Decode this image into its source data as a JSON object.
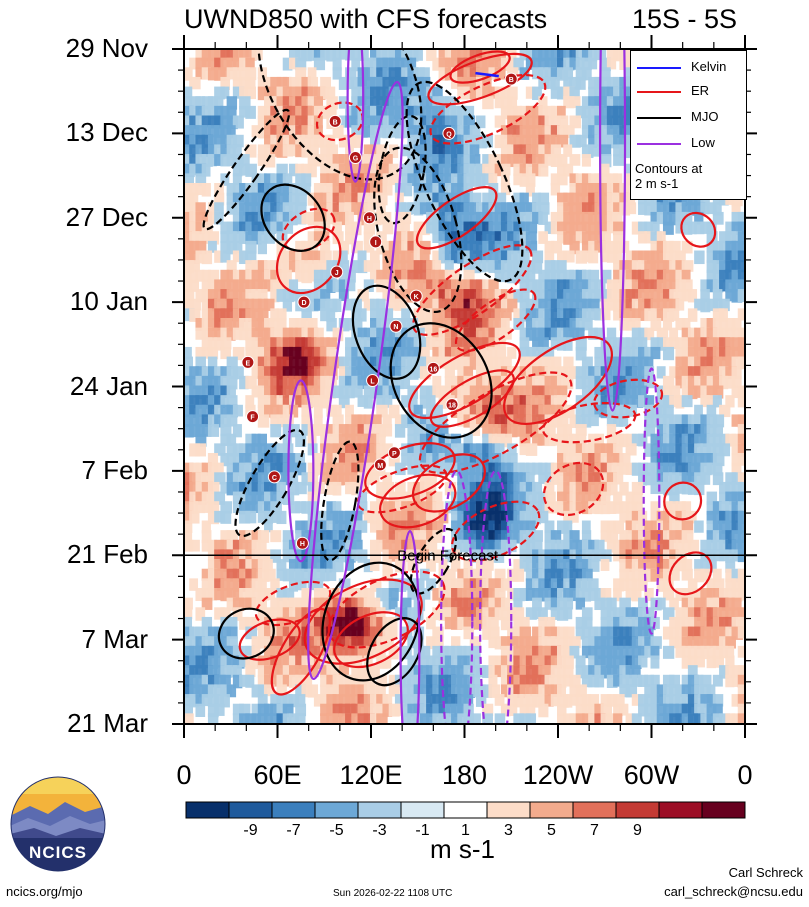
{
  "chart_data": {
    "type": "heatmap",
    "title": "UWND850 with CFS forecasts",
    "region": "15S - 5S",
    "y_tick_labels": [
      "29 Nov",
      "13 Dec",
      "27 Dec",
      "10 Jan",
      "24 Jan",
      "7 Feb",
      "21 Feb",
      "7 Mar",
      "21 Mar"
    ],
    "x_tick_labels": [
      "0",
      "60E",
      "120E",
      "180",
      "120W",
      "60W",
      "0"
    ],
    "x_range_degE": [
      0,
      360
    ],
    "y_range_days_from_29Nov": [
      0,
      112
    ],
    "forecast_start_day": 84,
    "forecast_label": "Begin Forecast",
    "colorbar": {
      "units": "m s-1",
      "tick_labels": [
        "-9",
        "-7",
        "-5",
        "-3",
        "-1",
        "1",
        "3",
        "5",
        "7",
        "9"
      ],
      "levels": [
        -9,
        -7,
        -5,
        -3,
        -1,
        1,
        3,
        5,
        7,
        9
      ],
      "colors": [
        "#08306b",
        "#1f5a9c",
        "#3b7fbd",
        "#6da8d6",
        "#a9cde6",
        "#d8e9f3",
        "#ffffff",
        "#fcdcc8",
        "#f3ab8d",
        "#e2705a",
        "#c43a34",
        "#9c0d25",
        "#67001f"
      ]
    },
    "legend": {
      "items": [
        {
          "label": "Kelvin",
          "color": "#1a1aff"
        },
        {
          "label": "ER",
          "color": "#e6161a"
        },
        {
          "label": "MJO",
          "color": "#000000"
        },
        {
          "label": "Low",
          "color": "#9b30e0"
        }
      ],
      "note_line1": "Contours at",
      "note_line2": "2 m s-1"
    },
    "storms": [
      {
        "id": "B",
        "lon": 97,
        "day": 12
      },
      {
        "id": "G",
        "lon": 110,
        "day": 18
      },
      {
        "id": "Q",
        "lon": 170,
        "day": 14
      },
      {
        "id": "B",
        "lon": 210,
        "day": 5
      },
      {
        "id": "I",
        "lon": 123,
        "day": 32
      },
      {
        "id": "H",
        "lon": 119,
        "day": 28
      },
      {
        "id": "J",
        "lon": 98,
        "day": 37
      },
      {
        "id": "D",
        "lon": 77,
        "day": 42
      },
      {
        "id": "K",
        "lon": 149,
        "day": 41
      },
      {
        "id": "N",
        "lon": 136,
        "day": 46
      },
      {
        "id": "16",
        "lon": 160,
        "day": 53
      },
      {
        "id": "E",
        "lon": 41,
        "day": 52
      },
      {
        "id": "L",
        "lon": 121,
        "day": 55
      },
      {
        "id": "18",
        "lon": 172,
        "day": 59
      },
      {
        "id": "F",
        "lon": 44,
        "day": 61
      },
      {
        "id": "P",
        "lon": 135,
        "day": 67
      },
      {
        "id": "M",
        "lon": 126,
        "day": 69
      },
      {
        "id": "C",
        "lon": 58,
        "day": 71
      },
      {
        "id": "H",
        "lon": 76,
        "day": 82
      }
    ]
  },
  "logo": {
    "text": "NCICS"
  },
  "footer": {
    "url": "ncics.org/mjo",
    "timestamp": "Sun 2026-02-22 1108 UTC",
    "author": "Carl Schreck",
    "email": "carl_schreck@ncsu.edu"
  }
}
